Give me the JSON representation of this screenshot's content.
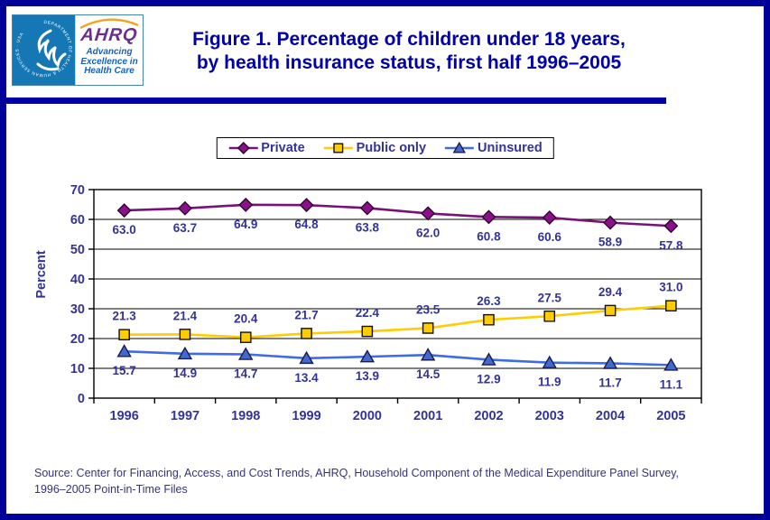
{
  "header": {
    "logo": {
      "seal_text": "DEPARTMENT OF HEALTH & HUMAN SERVICES · USA",
      "ahrq_acronym": "AHRQ",
      "tagline_lines": [
        "Advancing",
        "Excellence in",
        "Health Care"
      ]
    },
    "title_line1": "Figure 1. Percentage of children under 18 years,",
    "title_line2": "by health insurance status, first half 1996–2005"
  },
  "chart_data": {
    "type": "line",
    "title": "Figure 1. Percentage of children under 18 years, by health insurance status, first half 1996–2005",
    "xlabel": "",
    "ylabel": "Percent",
    "ylim": [
      0,
      70
    ],
    "ytick_step": 10,
    "grid": true,
    "legend_position": "top-center",
    "categories": [
      "1996",
      "1997",
      "1998",
      "1999",
      "2000",
      "2001",
      "2002",
      "2003",
      "2004",
      "2005"
    ],
    "series": [
      {
        "name": "Private",
        "color": "#7A117A",
        "marker": "diamond",
        "marker_fill": "#8B118B",
        "marker_stroke": "#30052F",
        "label_position": "below",
        "values": [
          63.0,
          63.7,
          64.9,
          64.8,
          63.8,
          62.0,
          60.8,
          60.6,
          58.9,
          57.8
        ]
      },
      {
        "name": "Public only",
        "color": "#FFCC00",
        "marker": "square",
        "marker_fill": "#FFCC00",
        "marker_stroke": "#111111",
        "label_position": "above",
        "values": [
          21.3,
          21.4,
          20.4,
          21.7,
          22.4,
          23.5,
          26.3,
          27.5,
          29.4,
          31.0
        ]
      },
      {
        "name": "Uninsured",
        "color": "#3E6BE6",
        "marker": "triangle",
        "marker_fill": "#4169CE",
        "marker_stroke": "#1C1C4E",
        "label_position": "below",
        "values": [
          15.7,
          14.9,
          14.7,
          13.4,
          13.9,
          14.5,
          12.9,
          11.9,
          11.7,
          11.1
        ]
      }
    ]
  },
  "source": {
    "line1": "Source: Center for Financing, Access, and Cost Trends, AHRQ, Household Component of the Medical Expenditure Panel Survey,",
    "line2": "1996–2005 Point-in-Time Files"
  },
  "colors": {
    "border": "#000099",
    "divider": "#0000A9",
    "title_text": "#0000AA",
    "axis_text": "#333399",
    "source_text": "#333380"
  }
}
